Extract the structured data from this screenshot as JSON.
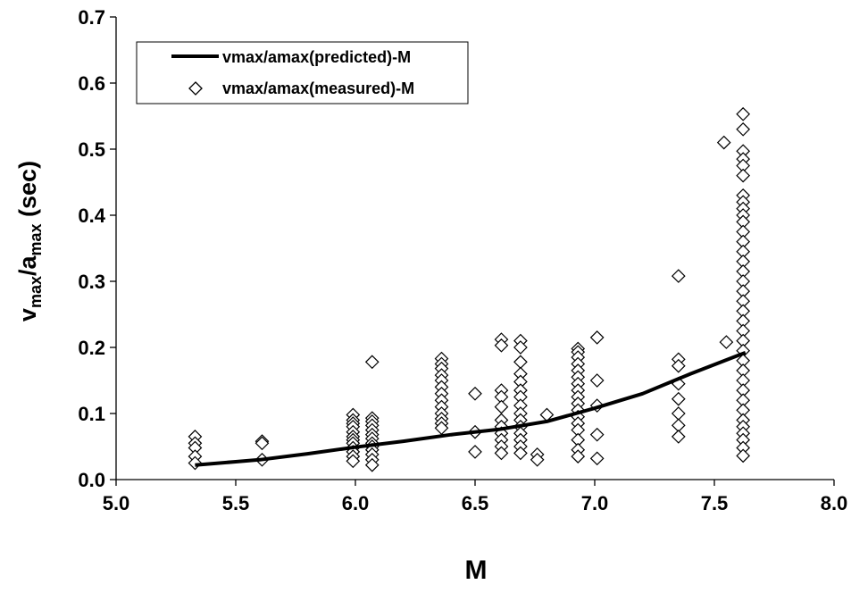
{
  "chart_data": {
    "type": "scatter",
    "title": "",
    "xlabel": "M",
    "ylabel_main": "v",
    "ylabel_sub1": "max",
    "ylabel_mid": "/a",
    "ylabel_sub2": "max",
    "ylabel_unit": " (sec)",
    "xlim": [
      5.0,
      8.0
    ],
    "ylim": [
      0.0,
      0.7
    ],
    "xticks": [
      5.0,
      5.5,
      6.0,
      6.5,
      7.0,
      7.5,
      8.0
    ],
    "xtick_labels": [
      "5.0",
      "5.5",
      "6.0",
      "6.5",
      "7.0",
      "7.5",
      "8.0"
    ],
    "yticks": [
      0.0,
      0.1,
      0.2,
      0.3,
      0.4,
      0.5,
      0.6,
      0.7
    ],
    "ytick_labels": [
      "0.0",
      "0.1",
      "0.2",
      "0.3",
      "0.4",
      "0.5",
      "0.6",
      "0.7"
    ],
    "grid": false,
    "legend_position": "top-left",
    "series": [
      {
        "name": "vmax/amax(predicted)-M",
        "kind": "line",
        "color": "#000000",
        "x": [
          5.33,
          5.5,
          5.6,
          5.8,
          6.0,
          6.2,
          6.4,
          6.6,
          6.8,
          7.0,
          7.2,
          7.4,
          7.6,
          7.63
        ],
        "y": [
          0.022,
          0.027,
          0.03,
          0.039,
          0.049,
          0.058,
          0.068,
          0.076,
          0.088,
          0.108,
          0.13,
          0.16,
          0.188,
          0.192
        ]
      },
      {
        "name": "vmax/amax(measured)-M",
        "kind": "scatter",
        "color": "#000000",
        "x": [
          5.33,
          5.33,
          5.33,
          5.33,
          5.33,
          5.61,
          5.61,
          5.61,
          5.99,
          5.99,
          5.99,
          5.99,
          5.99,
          5.99,
          5.99,
          5.99,
          5.99,
          5.99,
          5.99,
          5.99,
          6.07,
          6.07,
          6.07,
          6.07,
          6.07,
          6.07,
          6.07,
          6.07,
          6.07,
          6.07,
          6.07,
          6.07,
          6.07,
          6.36,
          6.36,
          6.36,
          6.36,
          6.36,
          6.36,
          6.36,
          6.36,
          6.36,
          6.36,
          6.36,
          6.36,
          6.36,
          6.5,
          6.5,
          6.5,
          6.61,
          6.61,
          6.61,
          6.61,
          6.61,
          6.61,
          6.61,
          6.61,
          6.61,
          6.61,
          6.61,
          6.69,
          6.69,
          6.69,
          6.69,
          6.69,
          6.69,
          6.69,
          6.69,
          6.69,
          6.69,
          6.69,
          6.69,
          6.69,
          6.69,
          6.69,
          6.76,
          6.76,
          6.8,
          6.93,
          6.93,
          6.93,
          6.93,
          6.93,
          6.93,
          6.93,
          6.93,
          6.93,
          6.93,
          6.93,
          6.93,
          6.93,
          6.93,
          6.93,
          6.93,
          6.93,
          7.01,
          7.01,
          7.01,
          7.01,
          7.01,
          7.35,
          7.35,
          7.35,
          7.35,
          7.35,
          7.35,
          7.35,
          7.35,
          7.54,
          7.55,
          7.62,
          7.62,
          7.62,
          7.62,
          7.62,
          7.62,
          7.62,
          7.62,
          7.62,
          7.62,
          7.62,
          7.62,
          7.62,
          7.62,
          7.62,
          7.62,
          7.62,
          7.62,
          7.62,
          7.62,
          7.62,
          7.62,
          7.62,
          7.62,
          7.62,
          7.62,
          7.62,
          7.62,
          7.62,
          7.62,
          7.62,
          7.62,
          7.62,
          7.62,
          7.62,
          7.62
        ],
        "y": [
          0.065,
          0.055,
          0.048,
          0.035,
          0.025,
          0.058,
          0.055,
          0.03,
          0.098,
          0.09,
          0.085,
          0.08,
          0.072,
          0.065,
          0.06,
          0.055,
          0.048,
          0.042,
          0.035,
          0.028,
          0.178,
          0.093,
          0.088,
          0.082,
          0.075,
          0.068,
          0.062,
          0.055,
          0.05,
          0.045,
          0.038,
          0.03,
          0.022,
          0.183,
          0.175,
          0.168,
          0.158,
          0.15,
          0.14,
          0.13,
          0.12,
          0.11,
          0.1,
          0.092,
          0.085,
          0.078,
          0.13,
          0.072,
          0.042,
          0.212,
          0.203,
          0.135,
          0.125,
          0.11,
          0.09,
          0.08,
          0.07,
          0.06,
          0.05,
          0.04,
          0.21,
          0.2,
          0.178,
          0.16,
          0.148,
          0.135,
          0.125,
          0.112,
          0.1,
          0.09,
          0.08,
          0.07,
          0.06,
          0.05,
          0.04,
          0.038,
          0.03,
          0.098,
          0.198,
          0.193,
          0.185,
          0.175,
          0.165,
          0.155,
          0.145,
          0.135,
          0.125,
          0.115,
          0.105,
          0.095,
          0.085,
          0.075,
          0.06,
          0.045,
          0.035,
          0.215,
          0.15,
          0.112,
          0.068,
          0.032,
          0.308,
          0.182,
          0.172,
          0.145,
          0.122,
          0.1,
          0.082,
          0.065,
          0.51,
          0.208,
          0.553,
          0.53,
          0.497,
          0.485,
          0.475,
          0.46,
          0.43,
          0.42,
          0.41,
          0.4,
          0.39,
          0.375,
          0.36,
          0.345,
          0.33,
          0.315,
          0.3,
          0.285,
          0.27,
          0.255,
          0.24,
          0.225,
          0.21,
          0.195,
          0.18,
          0.165,
          0.15,
          0.135,
          0.12,
          0.105,
          0.09,
          0.08,
          0.07,
          0.06,
          0.048,
          0.036
        ]
      }
    ]
  }
}
